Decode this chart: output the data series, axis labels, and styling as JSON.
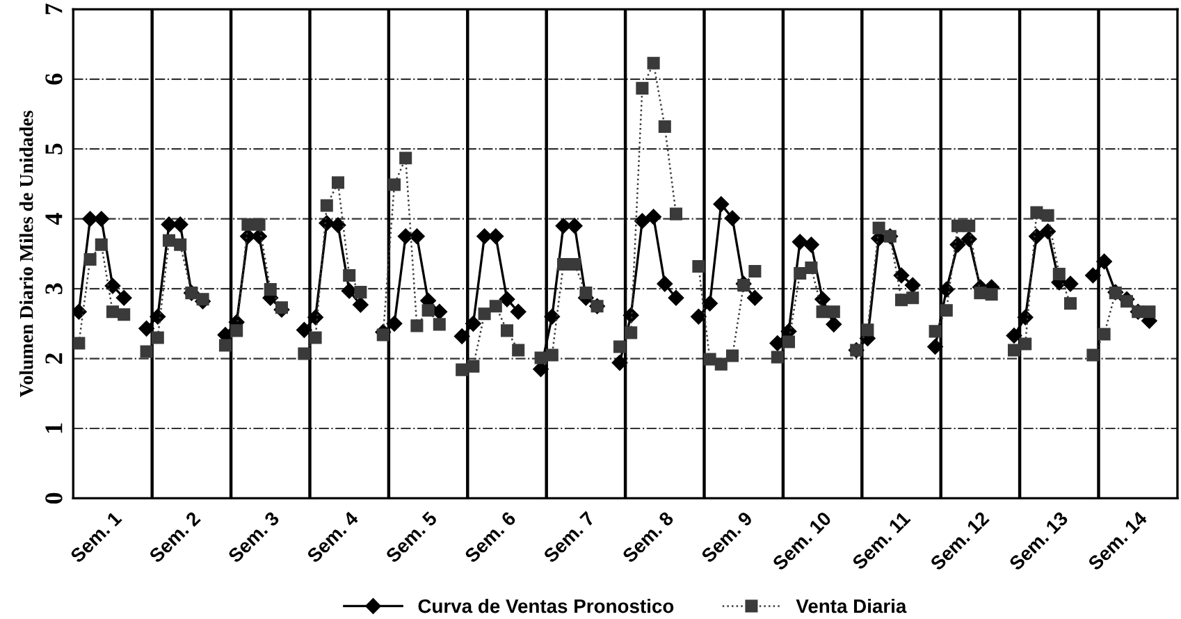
{
  "chart_data": {
    "type": "line",
    "ylabel": "Volumen Diario Miles de Unidades",
    "categories": [
      null,
      null,
      null,
      "Sem. 1",
      null,
      null,
      null,
      null,
      null,
      null,
      "Sem. 2",
      null,
      null,
      null,
      null,
      null,
      null,
      "Sem. 3",
      null,
      null,
      null,
      null,
      null,
      null,
      "Sem. 4",
      null,
      null,
      null,
      null,
      null,
      null,
      "Sem. 5",
      null,
      null,
      null,
      null,
      null,
      null,
      "Sem. 6",
      null,
      null,
      null,
      null,
      null,
      null,
      "Sem. 7",
      null,
      null,
      null,
      null,
      null,
      null,
      "Sem. 8",
      null,
      null,
      null,
      null,
      null,
      null,
      "Sem. 9",
      null,
      null,
      null,
      null,
      null,
      null,
      "Sem. 10",
      null,
      null,
      null,
      null,
      null,
      null,
      "Sem. 11",
      null,
      null,
      null,
      null,
      null,
      null,
      "Sem. 12",
      null,
      null,
      null,
      null,
      null,
      null,
      "Sem. 13",
      null,
      null,
      null,
      null,
      null,
      null,
      "Sem. 14",
      null,
      null,
      null
    ],
    "series": [
      {
        "name": "Curva de Ventas Pronostico",
        "color": "#000000",
        "marker": "diamond",
        "line_style": "solid",
        "values": [
          2.67,
          4.0,
          4.0,
          3.04,
          2.87,
          null,
          2.43,
          2.6,
          3.92,
          3.92,
          2.94,
          2.82,
          null,
          2.34,
          2.52,
          3.75,
          3.75,
          2.87,
          2.7,
          null,
          2.41,
          2.59,
          3.94,
          3.91,
          2.97,
          2.77,
          null,
          2.38,
          2.5,
          3.75,
          3.75,
          2.83,
          2.67,
          null,
          2.32,
          2.5,
          3.75,
          3.75,
          2.85,
          2.67,
          null,
          1.85,
          2.6,
          3.9,
          3.9,
          2.87,
          2.75,
          null,
          1.94,
          2.62,
          3.97,
          4.03,
          3.07,
          2.87,
          null,
          2.6,
          2.79,
          4.21,
          4.01,
          3.07,
          2.87,
          null,
          2.22,
          2.39,
          3.67,
          3.63,
          2.85,
          2.49,
          null,
          2.12,
          2.29,
          3.72,
          3.75,
          3.19,
          3.05,
          null,
          2.17,
          2.99,
          3.63,
          3.71,
          3.02,
          3.02,
          null,
          2.33,
          2.59,
          3.75,
          3.82,
          3.09,
          3.07,
          null,
          3.19,
          3.39,
          2.95,
          2.85,
          2.67,
          2.54,
          null,
          null
        ]
      },
      {
        "name": "Venta Diaria",
        "color": "#3a3a3a",
        "marker": "square",
        "line_style": "dotted",
        "values": [
          2.22,
          3.42,
          3.63,
          2.67,
          2.63,
          null,
          2.1,
          2.3,
          3.69,
          3.63,
          2.94,
          2.85,
          null,
          2.19,
          2.4,
          3.92,
          3.92,
          2.99,
          2.73,
          null,
          2.07,
          2.3,
          4.19,
          4.52,
          3.19,
          2.95,
          null,
          2.34,
          4.49,
          4.87,
          2.47,
          2.69,
          2.49,
          null,
          1.84,
          1.89,
          2.64,
          2.75,
          2.4,
          2.12,
          null,
          2.01,
          2.05,
          3.35,
          3.35,
          2.94,
          2.75,
          null,
          2.17,
          2.37,
          5.87,
          6.23,
          5.32,
          4.07,
          null,
          3.32,
          1.99,
          1.92,
          2.04,
          3.05,
          3.25,
          null,
          2.02,
          2.24,
          3.22,
          3.3,
          2.67,
          2.67,
          null,
          2.12,
          2.41,
          3.87,
          3.75,
          2.84,
          2.87,
          null,
          2.39,
          2.69,
          3.9,
          3.9,
          2.94,
          2.92,
          null,
          2.12,
          2.21,
          4.09,
          4.05,
          3.21,
          2.79,
          null,
          2.05,
          2.35,
          2.94,
          2.82,
          2.67,
          2.67,
          null,
          null
        ]
      }
    ],
    "ylim": [
      0,
      7
    ],
    "yticks": [
      0,
      1,
      2,
      3,
      4,
      5,
      6,
      7
    ],
    "grid": true,
    "legend": "bottom"
  }
}
